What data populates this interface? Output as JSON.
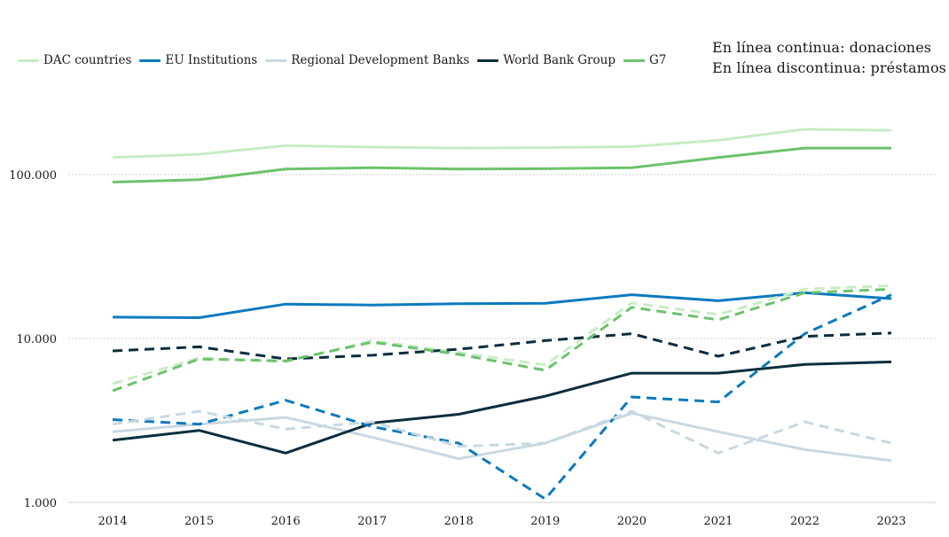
{
  "chart_data": {
    "type": "line",
    "title": "",
    "xlabel": "",
    "ylabel": "",
    "y_scale": "log",
    "ylim": [
      1000,
      300000
    ],
    "y_ticks": [
      {
        "value": 1000,
        "label": "1.000"
      },
      {
        "value": 10000,
        "label": "10.000"
      },
      {
        "value": 100000,
        "label": "100.000"
      }
    ],
    "grid": "horizontal dotted",
    "legend_position": "top",
    "x": [
      "2014",
      "2015",
      "2016",
      "2017",
      "2018",
      "2019",
      "2020",
      "2021",
      "2022",
      "2023"
    ],
    "notes": [
      "En línea continua: donaciones",
      "En línea discontinua: préstamos"
    ],
    "series": [
      {
        "name": "DAC countries",
        "color": "#c6ecc4",
        "style": "solid",
        "values": [
          127000,
          133000,
          150000,
          147000,
          145000,
          146000,
          148000,
          162000,
          189000,
          186000
        ]
      },
      {
        "name": "DAC countries",
        "color": "#c6ecc4",
        "style": "dashed",
        "show_in_legend": false,
        "values": [
          5300,
          7600,
          7200,
          9700,
          8200,
          6900,
          16500,
          14000,
          20000,
          21000
        ]
      },
      {
        "name": "EU Institutions",
        "color": "#0a7abf",
        "style": "solid",
        "values": [
          13500,
          13400,
          16200,
          16000,
          16300,
          16400,
          18500,
          17000,
          19000,
          17500
        ]
      },
      {
        "name": "EU Institutions",
        "color": "#0a7abf",
        "style": "dashed",
        "show_in_legend": false,
        "values": [
          3200,
          3000,
          4200,
          2900,
          2300,
          1050,
          4400,
          4100,
          10700,
          18500
        ]
      },
      {
        "name": "Regional Development Banks",
        "color": "#c8d8e2",
        "style": "solid",
        "values": [
          2700,
          3000,
          3300,
          2500,
          1850,
          2300,
          3500,
          2700,
          2100,
          1800
        ]
      },
      {
        "name": "Regional Development Banks",
        "color": "#c8d8e2",
        "style": "dashed",
        "show_in_legend": false,
        "values": [
          3000,
          3600,
          2800,
          3100,
          2200,
          2300,
          3600,
          2000,
          3100,
          2300
        ]
      },
      {
        "name": "World Bank Group",
        "color": "#0c2e3d",
        "style": "solid",
        "values": [
          2400,
          2750,
          2000,
          3050,
          3450,
          4450,
          6150,
          6150,
          6950,
          7200
        ]
      },
      {
        "name": "World Bank Group",
        "color": "#0c2e3d",
        "style": "dashed",
        "show_in_legend": false,
        "values": [
          8400,
          8900,
          7500,
          7900,
          8600,
          9700,
          10700,
          7800,
          10300,
          10800
        ]
      },
      {
        "name": "G7",
        "color": "#6cc26c",
        "style": "solid",
        "values": [
          90000,
          93000,
          108000,
          110000,
          108000,
          108500,
          110000,
          127000,
          145000,
          145000
        ]
      },
      {
        "name": "G7",
        "color": "#6cc26c",
        "style": "dashed",
        "show_in_legend": false,
        "values": [
          4800,
          7500,
          7300,
          9500,
          8000,
          6400,
          15500,
          13000,
          19000,
          20000
        ]
      }
    ]
  }
}
